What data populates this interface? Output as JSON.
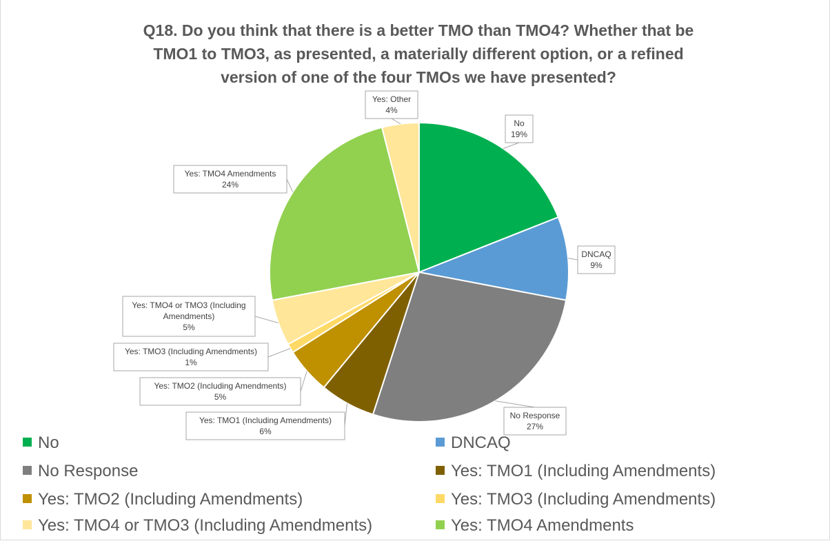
{
  "chart_data": {
    "type": "pie",
    "title_lines": [
      "Q18. Do you think that there is a better TMO than TMO4? Whether that be",
      "TMO1 to TMO3, as presented, a materially different option, or a refined",
      "version of one of the four TMOs we have presented?"
    ],
    "legend_position": "bottom",
    "slices": [
      {
        "name": "No",
        "value": 19,
        "label": "19%",
        "color": "#00b050",
        "callout": [
          "No",
          "19%"
        ]
      },
      {
        "name": "DNCAQ",
        "value": 9,
        "label": "9%",
        "color": "#5b9bd5",
        "callout": [
          "DNCAQ",
          "9%"
        ]
      },
      {
        "name": "No Response",
        "value": 27,
        "label": "27%",
        "color": "#7f7f7f",
        "callout": [
          "No Response",
          "27%"
        ]
      },
      {
        "name": "Yes: TMO1 (Including Amendments)",
        "value": 6,
        "label": "6%",
        "color": "#7f6000",
        "callout": [
          "Yes: TMO1 (Including Amendments)",
          "6%"
        ]
      },
      {
        "name": "Yes: TMO2 (Including Amendments)",
        "value": 5,
        "label": "5%",
        "color": "#bf9000",
        "callout": [
          "Yes: TMO2 (Including Amendments)",
          "5%"
        ]
      },
      {
        "name": "Yes: TMO3 (Including Amendments)",
        "value": 1,
        "label": "1%",
        "color": "#ffd966",
        "callout": [
          "Yes: TMO3 (Including Amendments)",
          "1%"
        ]
      },
      {
        "name": "Yes: TMO4 or TMO3 (Including Amendments)",
        "value": 5,
        "label": "5%",
        "color": "#ffe699",
        "callout": [
          "Yes: TMO4 or TMO3 (Including",
          "Amendments)",
          "5%"
        ]
      },
      {
        "name": "Yes: TMO4 Amendments",
        "value": 24,
        "label": "24%",
        "color": "#92d050",
        "callout": [
          "Yes: TMO4 Amendments",
          "24%"
        ]
      },
      {
        "name": "Yes: Other",
        "value": 4,
        "label": "4%",
        "color": "#ffe699",
        "callout": [
          "Yes: Other",
          "4%"
        ]
      }
    ],
    "legend": [
      {
        "name": "No",
        "color": "#00b050"
      },
      {
        "name": "DNCAQ",
        "color": "#5b9bd5"
      },
      {
        "name": "No Response",
        "color": "#7f7f7f"
      },
      {
        "name": "Yes: TMO1 (Including Amendments)",
        "color": "#7f6000"
      },
      {
        "name": "Yes: TMO2 (Including Amendments)",
        "color": "#bf9000"
      },
      {
        "name": "Yes: TMO3 (Including Amendments)",
        "color": "#ffd966"
      },
      {
        "name": "Yes: TMO4 or TMO3 (Including Amendments)",
        "color": "#ffe699"
      },
      {
        "name": "Yes: TMO4 Amendments",
        "color": "#92d050"
      }
    ]
  }
}
